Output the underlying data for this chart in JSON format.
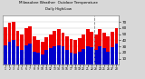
{
  "title1": "Milwaukee Weather  Outdoor Temperature",
  "title2": "Daily High/Low",
  "highs": [
    62,
    68,
    70,
    55,
    50,
    60,
    63,
    47,
    40,
    37,
    45,
    50,
    55,
    58,
    52,
    47,
    42,
    40,
    44,
    50,
    58,
    54,
    50,
    58,
    52,
    47,
    54,
    60
  ],
  "lows": [
    32,
    38,
    40,
    30,
    24,
    32,
    34,
    22,
    20,
    17,
    24,
    27,
    30,
    32,
    30,
    24,
    20,
    18,
    22,
    26,
    30,
    28,
    24,
    30,
    27,
    22,
    28,
    34
  ],
  "bar_width": 0.85,
  "high_color": "#ee0000",
  "low_color": "#0000cc",
  "ylim_min": 0,
  "ylim_max": 80,
  "yticks": [
    10,
    20,
    30,
    40,
    50,
    60,
    70
  ],
  "bg_color": "#d8d8d8",
  "plot_bg": "#ffffff",
  "divider_index": 22,
  "n_bars": 28
}
